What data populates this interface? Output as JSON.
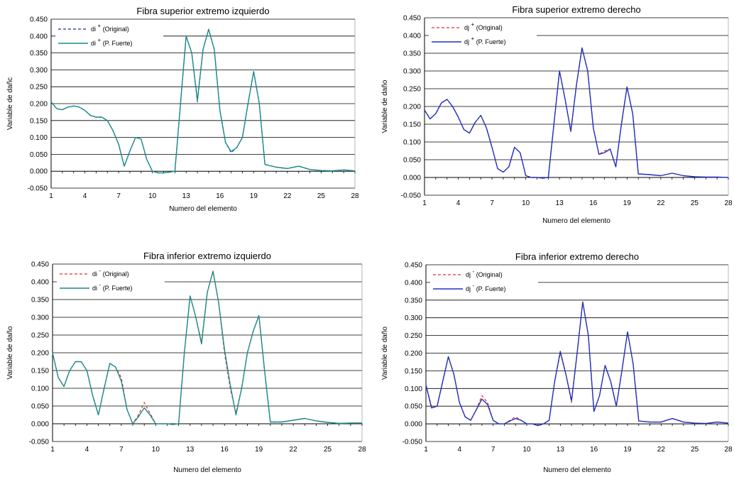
{
  "chart_data": [
    {
      "type": "line",
      "title": "Fibra superior extremo izquierdo",
      "xlabel": "Numero del elemento",
      "ylabel": "Variable de dañc",
      "xlim": [
        1,
        28
      ],
      "ylim": [
        -0.05,
        0.45
      ],
      "xticks": [
        "1",
        "4",
        "7",
        "10",
        "13",
        "16",
        "19",
        "22",
        "25",
        "28"
      ],
      "yticks": [
        "-0.050",
        "0.000",
        "0.050",
        "0.100",
        "0.150",
        "0.200",
        "0.250",
        "0.300",
        "0.350",
        "0.400",
        "0.450"
      ],
      "grid": true,
      "legend_position": "top-left",
      "series": [
        {
          "name": "di + (Original)",
          "label_main": "di",
          "label_sup": "+",
          "label_rest": "(Original)",
          "color": "#1f2a8c",
          "dash": "4,3",
          "width": 1.2,
          "x": [
            1,
            1.5,
            2,
            2.5,
            3,
            3.5,
            4,
            4.5,
            5,
            5.5,
            6,
            6.5,
            7,
            7.5,
            8,
            8.5,
            9,
            9.5,
            10,
            10.5,
            11,
            11.5,
            12,
            12.5,
            13,
            13.5,
            14,
            14.5,
            15,
            15.5,
            16,
            16.5,
            17,
            17.5,
            18,
            18.5,
            19,
            19.5,
            20,
            21,
            22,
            23,
            24,
            25,
            26,
            27,
            28
          ],
          "y": [
            0.205,
            0.185,
            0.182,
            0.19,
            0.193,
            0.19,
            0.18,
            0.165,
            0.16,
            0.16,
            0.15,
            0.12,
            0.08,
            0.015,
            0.06,
            0.1,
            0.095,
            0.035,
            0.0,
            -0.005,
            -0.005,
            -0.003,
            0.0,
            0.2,
            0.4,
            0.35,
            0.205,
            0.36,
            0.42,
            0.36,
            0.18,
            0.085,
            0.055,
            0.07,
            0.1,
            0.2,
            0.295,
            0.2,
            0.02,
            0.012,
            0.008,
            0.015,
            0.005,
            0.002,
            0.001,
            0.004,
            0.001
          ]
        },
        {
          "name": "di + (P. Fuerte)",
          "label_main": "di",
          "label_sup": "+",
          "label_rest": "(P. Fuerte)",
          "color": "#1a8a8a",
          "dash": "",
          "width": 1.4,
          "x": [
            1,
            1.5,
            2,
            2.5,
            3,
            3.5,
            4,
            4.5,
            5,
            5.5,
            6,
            6.5,
            7,
            7.5,
            8,
            8.5,
            9,
            9.5,
            10,
            10.5,
            11,
            11.5,
            12,
            12.5,
            13,
            13.5,
            14,
            14.5,
            15,
            15.5,
            16,
            16.5,
            17,
            17.5,
            18,
            18.5,
            19,
            19.5,
            20,
            21,
            22,
            23,
            24,
            25,
            26,
            27,
            28
          ],
          "y": [
            0.205,
            0.185,
            0.182,
            0.19,
            0.193,
            0.19,
            0.18,
            0.165,
            0.16,
            0.16,
            0.15,
            0.12,
            0.08,
            0.015,
            0.06,
            0.1,
            0.095,
            0.035,
            0.0,
            -0.005,
            -0.005,
            -0.003,
            0.0,
            0.2,
            0.4,
            0.35,
            0.21,
            0.36,
            0.42,
            0.36,
            0.18,
            0.085,
            0.058,
            0.07,
            0.1,
            0.2,
            0.295,
            0.2,
            0.02,
            0.012,
            0.008,
            0.015,
            0.005,
            0.002,
            0.001,
            0.004,
            0.001
          ]
        }
      ]
    },
    {
      "type": "line",
      "title": "Fibra superior extremo derecho",
      "xlabel": "Numero del elemento",
      "ylabel": "Variable de daño",
      "xlim": [
        1,
        28
      ],
      "ylim": [
        -0.05,
        0.45
      ],
      "xticks": [
        "1",
        "4",
        "7",
        "10",
        "13",
        "16",
        "19",
        "22",
        "25",
        "28"
      ],
      "yticks": [
        "-0.050",
        "0.000",
        "0.050",
        "0.100",
        "0.150",
        "0.200",
        "0.250",
        "0.300",
        "0.350",
        "0.400",
        "0.450"
      ],
      "grid": true,
      "legend_position": "top-left",
      "series": [
        {
          "name": "dj + (Original)",
          "label_main": "dj",
          "label_sup": "+",
          "label_rest": "(Original)",
          "color": "#e03030",
          "dash": "4,3",
          "width": 1.2,
          "x": [
            1,
            1.5,
            2,
            2.5,
            3,
            3.5,
            4,
            4.5,
            5,
            5.5,
            6,
            6.5,
            7,
            7.5,
            8,
            8.5,
            9,
            9.5,
            10,
            10.5,
            11,
            11.5,
            12,
            12.5,
            13,
            13.5,
            14,
            14.5,
            15,
            15.5,
            16,
            16.5,
            17,
            17.5,
            18,
            18.5,
            19,
            19.5,
            20,
            21,
            22,
            23,
            24,
            25,
            26,
            27,
            28
          ],
          "y": [
            0.19,
            0.165,
            0.18,
            0.21,
            0.22,
            0.2,
            0.17,
            0.135,
            0.125,
            0.155,
            0.175,
            0.14,
            0.085,
            0.025,
            0.015,
            0.03,
            0.085,
            0.07,
            0.005,
            0.0,
            0.0,
            -0.002,
            0.0,
            0.15,
            0.3,
            0.22,
            0.13,
            0.26,
            0.365,
            0.3,
            0.14,
            0.065,
            0.075,
            0.08,
            0.03,
            0.15,
            0.255,
            0.18,
            0.01,
            0.008,
            0.005,
            0.012,
            0.005,
            0.002,
            0.001,
            0.001,
            0.0
          ]
        },
        {
          "name": "dj + (P. Fuerte)",
          "label_main": "dj",
          "label_sup": "+",
          "label_rest": "(P. Fuerte)",
          "color": "#2030c0",
          "dash": "",
          "width": 1.4,
          "x": [
            1,
            1.5,
            2,
            2.5,
            3,
            3.5,
            4,
            4.5,
            5,
            5.5,
            6,
            6.5,
            7,
            7.5,
            8,
            8.5,
            9,
            9.5,
            10,
            10.5,
            11,
            11.5,
            12,
            12.5,
            13,
            13.5,
            14,
            14.5,
            15,
            15.5,
            16,
            16.5,
            17,
            17.5,
            18,
            18.5,
            19,
            19.5,
            20,
            21,
            22,
            23,
            24,
            25,
            26,
            27,
            28
          ],
          "y": [
            0.19,
            0.165,
            0.18,
            0.21,
            0.22,
            0.2,
            0.17,
            0.135,
            0.125,
            0.155,
            0.175,
            0.14,
            0.085,
            0.025,
            0.015,
            0.03,
            0.085,
            0.07,
            0.005,
            0.0,
            0.0,
            -0.002,
            0.0,
            0.15,
            0.3,
            0.22,
            0.13,
            0.26,
            0.365,
            0.3,
            0.14,
            0.065,
            0.07,
            0.08,
            0.03,
            0.15,
            0.255,
            0.18,
            0.01,
            0.008,
            0.005,
            0.012,
            0.005,
            0.002,
            0.001,
            0.001,
            0.0
          ]
        }
      ]
    },
    {
      "type": "line",
      "title": "Fibra inferior extremo izquierdo",
      "xlabel": "Numero del elemento",
      "ylabel": "Variable de daño",
      "xlim": [
        1,
        28
      ],
      "ylim": [
        -0.05,
        0.45
      ],
      "xticks": [
        "1",
        "4",
        "7",
        "10",
        "13",
        "16",
        "19",
        "22",
        "25",
        "28"
      ],
      "yticks": [
        "-0.050",
        "0.000",
        "0.050",
        "0.100",
        "0.150",
        "0.200",
        "0.250",
        "0.300",
        "0.350",
        "0.400",
        "0.450"
      ],
      "grid": true,
      "legend_position": "top-left",
      "series": [
        {
          "name": "di - (Original)",
          "label_main": "di",
          "label_sup": "-",
          "label_rest": "(Original)",
          "color": "#e03030",
          "dash": "4,3",
          "width": 1.2,
          "x": [
            1,
            1.5,
            2,
            2.5,
            3,
            3.5,
            4,
            4.5,
            5,
            5.5,
            6,
            6.5,
            7,
            7.5,
            8,
            8.5,
            9,
            9.5,
            10,
            10.5,
            11,
            11.5,
            12,
            12.5,
            13,
            13.5,
            14,
            14.5,
            15,
            15.5,
            16,
            16.5,
            17,
            17.5,
            18,
            18.5,
            19,
            19.5,
            20,
            21,
            22,
            23,
            24,
            25,
            26,
            27,
            28
          ],
          "y": [
            0.2,
            0.13,
            0.105,
            0.15,
            0.175,
            0.175,
            0.15,
            0.08,
            0.025,
            0.1,
            0.17,
            0.16,
            0.13,
            0.04,
            0.0,
            0.025,
            0.06,
            0.03,
            0.0,
            0.0,
            0.0,
            -0.002,
            0.0,
            0.2,
            0.36,
            0.3,
            0.23,
            0.37,
            0.43,
            0.34,
            0.2,
            0.1,
            0.03,
            0.1,
            0.2,
            0.26,
            0.305,
            0.15,
            0.005,
            0.005,
            0.01,
            0.015,
            0.008,
            0.004,
            0.001,
            0.002,
            0.002
          ]
        },
        {
          "name": "di - (P. Fuerte)",
          "label_main": "di",
          "label_sup": "-",
          "label_rest": "(P. Fuerte)",
          "color": "#1a8a8a",
          "dash": "",
          "width": 1.4,
          "x": [
            1,
            1.5,
            2,
            2.5,
            3,
            3.5,
            4,
            4.5,
            5,
            5.5,
            6,
            6.5,
            7,
            7.5,
            8,
            8.5,
            9,
            9.5,
            10,
            10.5,
            11,
            11.5,
            12,
            12.5,
            13,
            13.5,
            14,
            14.5,
            15,
            15.5,
            16,
            16.5,
            17,
            17.5,
            18,
            18.5,
            19,
            19.5,
            20,
            21,
            22,
            23,
            24,
            25,
            26,
            27,
            28
          ],
          "y": [
            0.2,
            0.13,
            0.105,
            0.15,
            0.175,
            0.175,
            0.15,
            0.08,
            0.025,
            0.1,
            0.17,
            0.16,
            0.12,
            0.04,
            0.0,
            0.02,
            0.045,
            0.025,
            0.0,
            0.0,
            0.0,
            -0.002,
            0.0,
            0.2,
            0.36,
            0.3,
            0.225,
            0.37,
            0.43,
            0.34,
            0.21,
            0.11,
            0.025,
            0.1,
            0.2,
            0.26,
            0.305,
            0.15,
            0.005,
            0.005,
            0.01,
            0.015,
            0.008,
            0.004,
            0.001,
            0.002,
            0.002
          ]
        }
      ]
    },
    {
      "type": "line",
      "title": "Fibra inferior extremo derecho",
      "xlabel": "Numero del elemento",
      "ylabel": "Variable de daño",
      "xlim": [
        1,
        28
      ],
      "ylim": [
        -0.05,
        0.45
      ],
      "xticks": [
        "1",
        "4",
        "7",
        "10",
        "13",
        "16",
        "19",
        "22",
        "25",
        "28"
      ],
      "yticks": [
        "-0.050",
        "0.000",
        "0.050",
        "0.100",
        "0.150",
        "0.200",
        "0.250",
        "0.300",
        "0.350",
        "0.400",
        "0.450"
      ],
      "grid": true,
      "legend_position": "top-left",
      "series": [
        {
          "name": "dj - (Original)",
          "label_main": "dj",
          "label_sup": "-",
          "label_rest": "(Original)",
          "color": "#e03030",
          "dash": "4,3",
          "width": 1.2,
          "x": [
            1,
            1.5,
            2,
            2.5,
            3,
            3.5,
            4,
            4.5,
            5,
            5.5,
            6,
            6.5,
            7,
            7.5,
            8,
            8.5,
            9,
            9.5,
            10,
            10.5,
            11,
            11.5,
            12,
            12.5,
            13,
            13.5,
            14,
            14.5,
            15,
            15.5,
            16,
            16.5,
            17,
            17.5,
            18,
            18.5,
            19,
            19.5,
            20,
            21,
            22,
            23,
            24,
            25,
            26,
            27,
            28
          ],
          "y": [
            0.11,
            0.05,
            0.05,
            0.12,
            0.19,
            0.14,
            0.06,
            0.02,
            0.01,
            0.04,
            0.08,
            0.06,
            0.01,
            0.0,
            0.0,
            0.01,
            0.02,
            0.01,
            0.0,
            0.0,
            -0.005,
            0.0,
            0.01,
            0.12,
            0.2,
            0.14,
            0.06,
            0.2,
            0.345,
            0.25,
            0.035,
            0.08,
            0.165,
            0.12,
            0.05,
            0.15,
            0.26,
            0.17,
            0.008,
            0.005,
            0.005,
            0.015,
            0.005,
            0.002,
            0.001,
            0.005,
            0.002
          ]
        },
        {
          "name": "dj - (P. Fuerte)",
          "label_main": "dj",
          "label_sup": "-",
          "label_rest": "(P. Fuerte)",
          "color": "#2030c0",
          "dash": "",
          "width": 1.4,
          "x": [
            1,
            1.5,
            2,
            2.5,
            3,
            3.5,
            4,
            4.5,
            5,
            5.5,
            6,
            6.5,
            7,
            7.5,
            8,
            8.5,
            9,
            9.5,
            10,
            10.5,
            11,
            11.5,
            12,
            12.5,
            13,
            13.5,
            14,
            14.5,
            15,
            15.5,
            16,
            16.5,
            17,
            17.5,
            18,
            18.5,
            19,
            19.5,
            20,
            21,
            22,
            23,
            24,
            25,
            26,
            27,
            28
          ],
          "y": [
            0.11,
            0.045,
            0.05,
            0.12,
            0.19,
            0.14,
            0.06,
            0.02,
            0.01,
            0.04,
            0.07,
            0.055,
            0.01,
            0.0,
            0.0,
            0.008,
            0.015,
            0.01,
            0.0,
            0.0,
            -0.005,
            0.0,
            0.01,
            0.12,
            0.205,
            0.14,
            0.065,
            0.2,
            0.345,
            0.25,
            0.035,
            0.08,
            0.165,
            0.12,
            0.05,
            0.15,
            0.26,
            0.17,
            0.008,
            0.005,
            0.005,
            0.015,
            0.005,
            0.002,
            0.001,
            0.005,
            0.002
          ]
        }
      ]
    }
  ]
}
